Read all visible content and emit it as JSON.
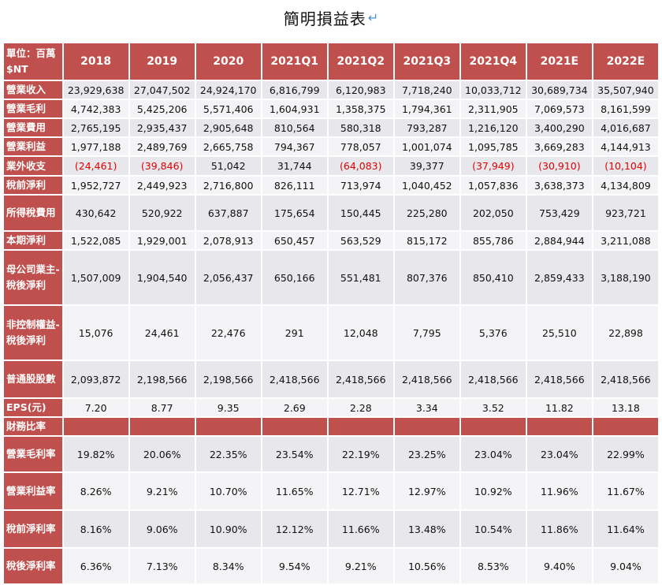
{
  "title": "簡明損益表",
  "title_mark": "↵",
  "header": {
    "unit_label": "單位：百萬$NT",
    "columns": [
      "2018",
      "2019",
      "2020",
      "2021Q1",
      "2021Q2",
      "2021Q3",
      "2021Q4",
      "2021E",
      "2022E"
    ]
  },
  "rows": [
    {
      "label": "營業收入",
      "values": [
        "23,929,638",
        "27,047,502",
        "24,924,170",
        "6,816,799",
        "6,120,983",
        "7,718,240",
        "10,033,712",
        "30,689,734",
        "35,507,940"
      ]
    },
    {
      "label": "營業毛利",
      "values": [
        "4,742,383",
        "5,425,206",
        "5,571,406",
        "1,604,931",
        "1,358,375",
        "1,794,361",
        "2,311,905",
        "7,069,573",
        "8,161,599"
      ]
    },
    {
      "label": "營業費用",
      "values": [
        "2,765,195",
        "2,935,437",
        "2,905,648",
        "810,564",
        "580,318",
        "793,287",
        "1,216,120",
        "3,400,290",
        "4,016,687"
      ]
    },
    {
      "label": "營業利益",
      "values": [
        "1,977,188",
        "2,489,769",
        "2,665,758",
        "794,367",
        "778,057",
        "1,001,074",
        "1,095,785",
        "3,669,283",
        "4,144,913"
      ]
    },
    {
      "label": "業外收支",
      "values": [
        "(24,461)",
        "(39,846)",
        "51,042",
        "31,744",
        "(64,083)",
        "39,377",
        "(37,949)",
        "(30,910)",
        "(10,104)"
      ]
    },
    {
      "label": "稅前淨利",
      "values": [
        "1,952,727",
        "2,449,923",
        "2,716,800",
        "826,111",
        "713,974",
        "1,040,452",
        "1,057,836",
        "3,638,373",
        "4,134,809"
      ]
    },
    {
      "label": "所得稅費用",
      "values": [
        "430,642",
        "520,922",
        "637,887",
        "175,654",
        "150,445",
        "225,280",
        "202,050",
        "753,429",
        "923,721"
      ]
    },
    {
      "label": "本期淨利",
      "values": [
        "1,522,085",
        "1,929,001",
        "2,078,913",
        "650,457",
        "563,529",
        "815,172",
        "855,786",
        "2,884,944",
        "3,211,088"
      ]
    },
    {
      "label": "母公司業主-稅後淨利",
      "values": [
        "1,507,009",
        "1,904,540",
        "2,056,437",
        "650,166",
        "551,481",
        "807,376",
        "850,410",
        "2,859,433",
        "3,188,190"
      ]
    },
    {
      "label": "非控制權益-稅後淨利",
      "values": [
        "15,076",
        "24,461",
        "22,476",
        "291",
        "12,048",
        "7,795",
        "5,376",
        "25,510",
        "22,898"
      ]
    },
    {
      "label": "普通股股數",
      "values": [
        "2,093,872",
        "2,198,566",
        "2,198,566",
        "2,418,566",
        "2,418,566",
        "2,418,566",
        "2,418,566",
        "2,418,566",
        "2,418,566"
      ]
    },
    {
      "label": "EPS(元)",
      "values": [
        "7.20",
        "8.77",
        "9.35",
        "2.69",
        "2.28",
        "3.34",
        "3.52",
        "11.82",
        "13.18"
      ]
    }
  ],
  "ratio_section_label": "財務比率",
  "ratio_rows": [
    {
      "label": "營業毛利率",
      "values": [
        "19.82%",
        "20.06%",
        "22.35%",
        "23.54%",
        "22.19%",
        "23.25%",
        "23.04%",
        "23.04%",
        "22.99%"
      ]
    },
    {
      "label": "營業利益率",
      "values": [
        "8.26%",
        "9.21%",
        "10.70%",
        "11.65%",
        "12.71%",
        "12.97%",
        "10.92%",
        "11.96%",
        "11.67%"
      ]
    },
    {
      "label": "稅前淨利率",
      "values": [
        "8.16%",
        "9.06%",
        "10.90%",
        "12.12%",
        "11.66%",
        "13.48%",
        "10.54%",
        "11.86%",
        "11.64%"
      ]
    },
    {
      "label": "稅後淨利率",
      "values": [
        "6.36%",
        "7.13%",
        "8.34%",
        "9.54%",
        "9.21%",
        "10.56%",
        "8.53%",
        "9.40%",
        "9.04%"
      ]
    }
  ],
  "colors": {
    "header_bg": "#c0504d",
    "header_text": "#ffffff",
    "row_odd": "#e8e8ec",
    "row_even": "#f4f4f6",
    "negative_text": "#e00000",
    "title_mark": "#4a90d9"
  }
}
